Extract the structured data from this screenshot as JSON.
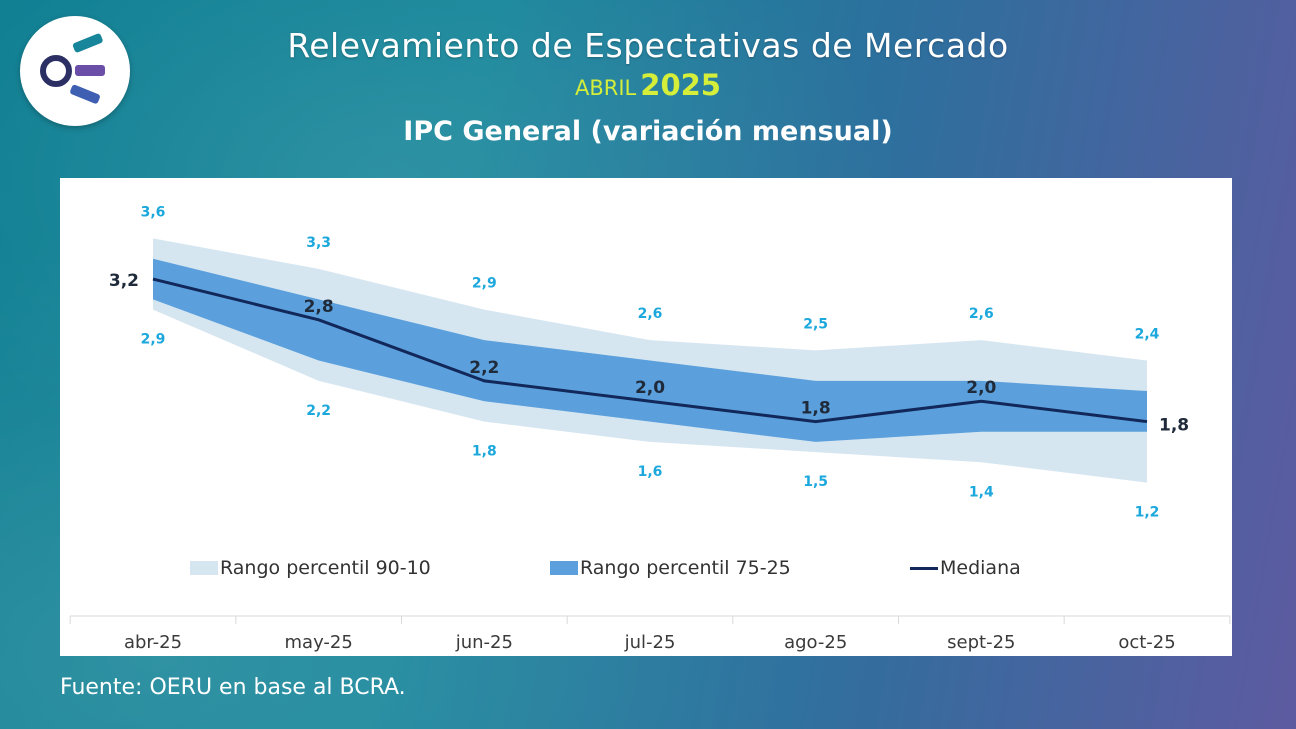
{
  "header": {
    "title": "Relevamiento de Espectativas de Mercado",
    "month": "ABRIL",
    "year": "2025",
    "chart_title": "IPC General (variación mensual)"
  },
  "footer": {
    "source": "Fuente: OERU en base al BCRA."
  },
  "colors": {
    "band_outer": "#d6e6f1",
    "band_inner": "#5ba0dc",
    "median": "#12285a",
    "range_label": "#1ca8dc",
    "median_label": "#1f2b3a",
    "axis_label": "#3a3a3a"
  },
  "chart_data": {
    "type": "area",
    "title": "IPC General (variación mensual)",
    "categories": [
      "abr-25",
      "may-25",
      "jun-25",
      "jul-25",
      "ago-25",
      "sept-25",
      "oct-25"
    ],
    "series": [
      {
        "name": "Rango percentil 90-10",
        "kind": "band",
        "upper": [
          3.6,
          3.3,
          2.9,
          2.6,
          2.5,
          2.6,
          2.4
        ],
        "lower": [
          2.9,
          2.2,
          1.8,
          1.6,
          1.5,
          1.4,
          1.2
        ]
      },
      {
        "name": "Rango percentil 75-25",
        "kind": "band",
        "upper": [
          3.4,
          3.0,
          2.6,
          2.4,
          2.2,
          2.2,
          2.1
        ],
        "lower": [
          3.0,
          2.4,
          2.0,
          1.8,
          1.6,
          1.7,
          1.7
        ]
      },
      {
        "name": "Mediana",
        "kind": "line",
        "values": [
          3.2,
          2.8,
          2.2,
          2.0,
          1.8,
          2.0,
          1.8
        ]
      }
    ],
    "labels": {
      "upper": [
        "3,6",
        "3,3",
        "2,9",
        "2,6",
        "2,5",
        "2,6",
        "2,4"
      ],
      "lower": [
        "2,9",
        "2,2",
        "1,8",
        "1,6",
        "1,5",
        "1,4",
        "1,2"
      ],
      "median": [
        "3,2",
        "2,8",
        "2,2",
        "2,0",
        "1,8",
        "2,0",
        "1,8"
      ]
    },
    "legend": [
      "Rango percentil 90-10",
      "Rango percentil 75-25",
      "Mediana"
    ],
    "legend_position": "bottom",
    "ylim": [
      1.0,
      3.8
    ],
    "xlabel": "",
    "ylabel": "",
    "grid": false
  }
}
